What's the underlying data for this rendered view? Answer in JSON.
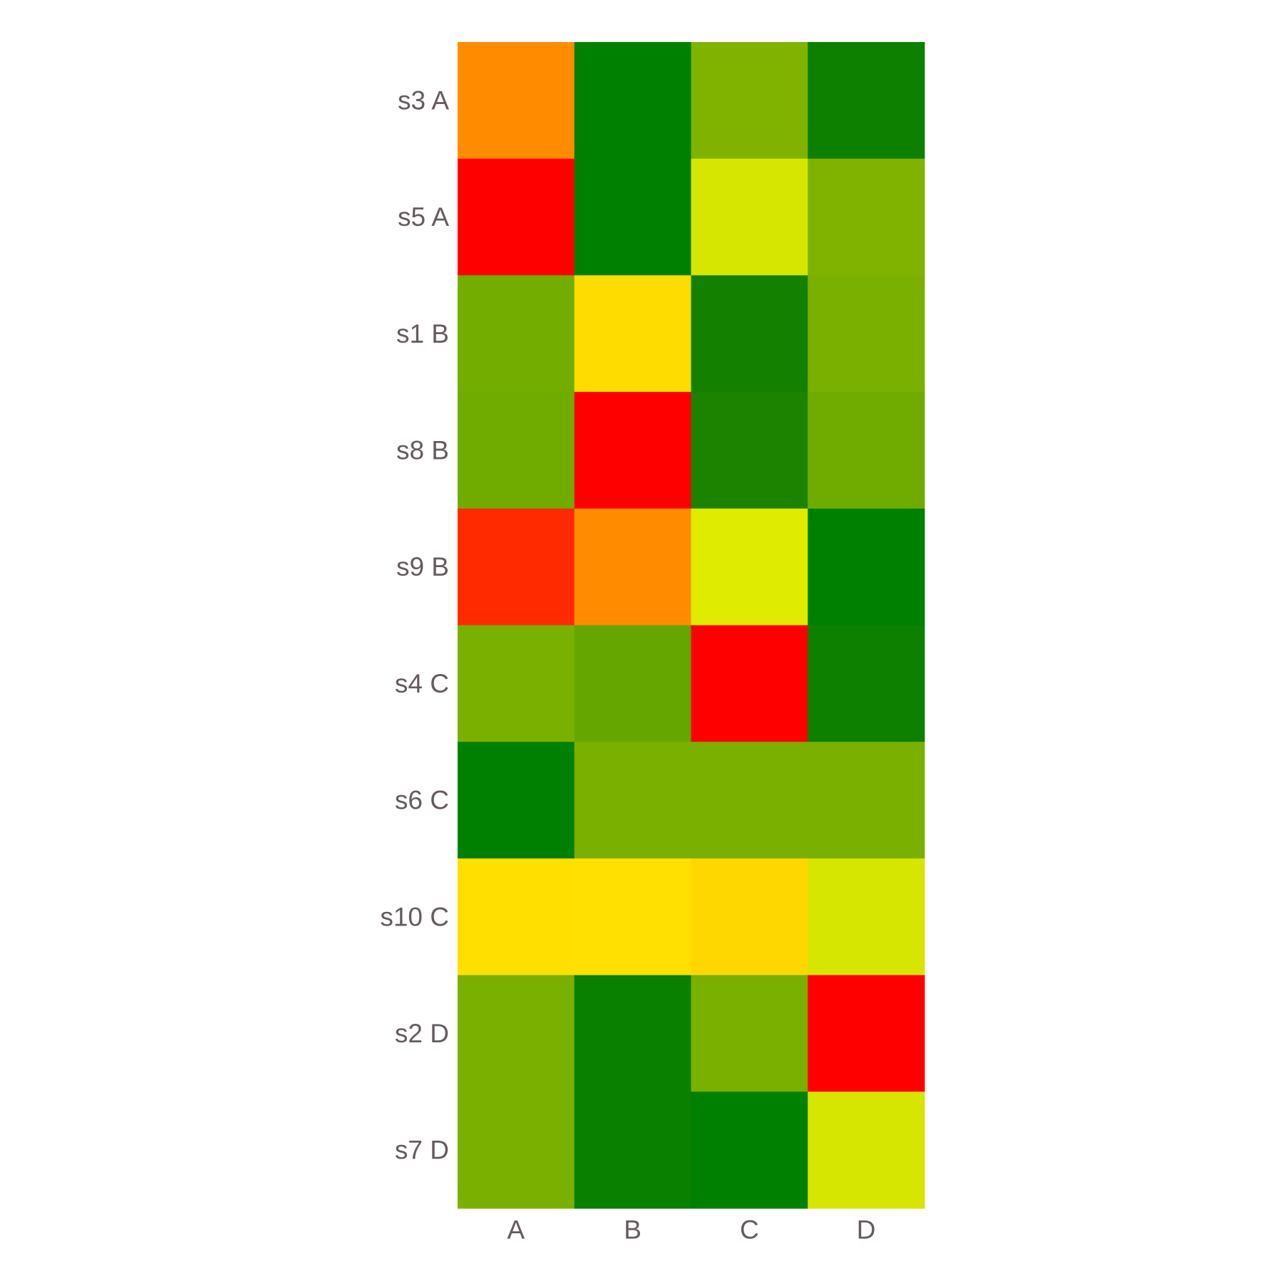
{
  "chart_data": {
    "type": "heatmap",
    "title": "",
    "xlabel": "",
    "ylabel": "",
    "x_categories": [
      "A",
      "B",
      "C",
      "D"
    ],
    "y_categories": [
      "s3 A",
      "s5 A",
      "s1 B",
      "s8 B",
      "s9 B",
      "s4 C",
      "s6 C",
      "s10 C",
      "s2 D",
      "s7 D"
    ],
    "cell_colors": [
      [
        "#FF8C00",
        "#008000",
        "#7FB300",
        "#0D8000"
      ],
      [
        "#FF0000",
        "#008000",
        "#D6E600",
        "#7FB300"
      ],
      [
        "#73AD00",
        "#FFDC00",
        "#148000",
        "#7AB000"
      ],
      [
        "#70AC00",
        "#FF0000",
        "#1C8300",
        "#70AC00"
      ],
      [
        "#FF2A00",
        "#FF8C00",
        "#DFEB00",
        "#008000"
      ],
      [
        "#7AB000",
        "#66A600",
        "#FF0000",
        "#0D8000"
      ],
      [
        "#008000",
        "#7AB000",
        "#7AB000",
        "#7AB000"
      ],
      [
        "#FFDF00",
        "#FFE000",
        "#FFD700",
        "#D6E600"
      ],
      [
        "#7AB000",
        "#0A8000",
        "#7AB000",
        "#FF0000"
      ],
      [
        "#7AB000",
        "#0A8000",
        "#008000",
        "#D6E600"
      ]
    ],
    "grid": false,
    "legend": "none",
    "colors": {
      "tick_text": "#665A61",
      "background": "#FFFFFF"
    }
  }
}
